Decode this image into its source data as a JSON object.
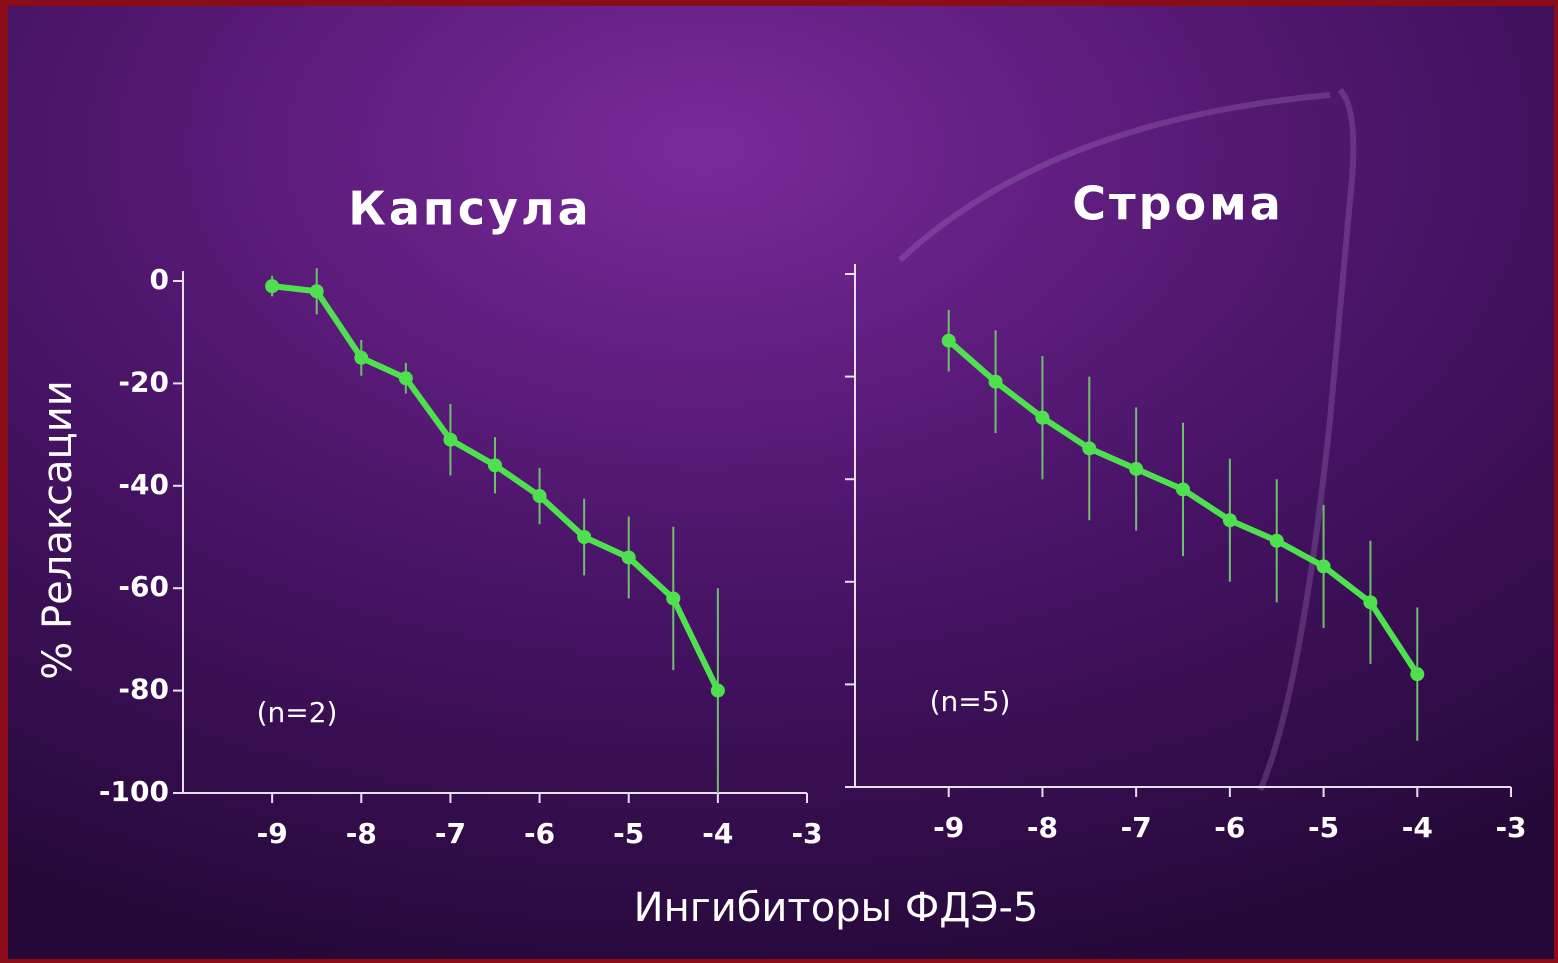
{
  "chart_data": [
    {
      "type": "line",
      "title": "Капсула",
      "annotation": "(n=2)",
      "x": [
        -9,
        -8.5,
        -8,
        -7.5,
        -7,
        -6.5,
        -6,
        -5.5,
        -5,
        -4.5,
        -4
      ],
      "values": [
        -1,
        -2,
        -15,
        -19,
        -31,
        -36,
        -42,
        -50,
        -54,
        -62,
        -80
      ],
      "errors": [
        2,
        4.5,
        3.5,
        3,
        7,
        5.5,
        5.5,
        7.5,
        8,
        14,
        20
      ],
      "color": "#4ee04e",
      "error_color": "#6fbf6f",
      "xlim": [
        -10,
        -3
      ],
      "xticks": [
        -9,
        -8,
        -7,
        -6,
        -5,
        -4,
        -3
      ],
      "ylim": [
        -100,
        0
      ],
      "yticks": [
        -100,
        -80,
        -60,
        -40,
        -20,
        0
      ],
      "ytick_labels": true
    },
    {
      "type": "line",
      "title": "Строма",
      "annotation": "(n=5)",
      "x": [
        -9,
        -8.5,
        -8,
        -7.5,
        -7,
        -6.5,
        -6,
        -5.5,
        -5,
        -4.5,
        -4
      ],
      "values": [
        -13,
        -21,
        -28,
        -34,
        -38,
        -42,
        -48,
        -52,
        -57,
        -64,
        -78
      ],
      "errors": [
        6,
        10,
        12,
        14,
        12,
        13,
        12,
        12,
        12,
        12,
        13
      ],
      "color": "#4ee04e",
      "error_color": "#6fbf6f",
      "xlim": [
        -10,
        -3
      ],
      "xticks": [
        -9,
        -8,
        -7,
        -6,
        -5,
        -4,
        -3
      ],
      "ylim": [
        -100,
        0
      ],
      "yticks": [
        -100,
        -80,
        -60,
        -40,
        -20,
        0
      ],
      "ytick_labels": false
    }
  ],
  "shared_axes": {
    "xlabel": "Ингибиторы ФДЭ-5",
    "ylabel": "% Релаксации"
  }
}
